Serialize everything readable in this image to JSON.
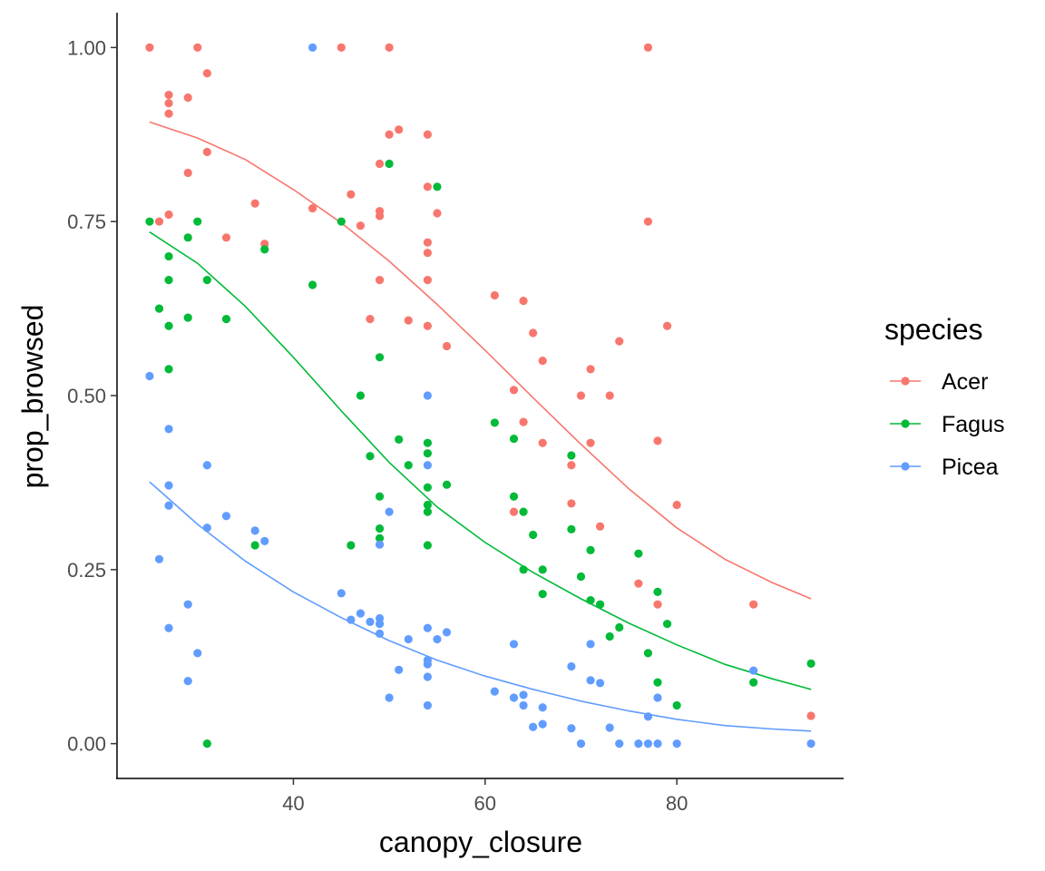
{
  "chart_data": {
    "type": "scatter",
    "title": "",
    "xlabel": "canopy_closure",
    "ylabel": "prop_browsed",
    "xlim": [
      21.6,
      97.4
    ],
    "ylim": [
      -0.05,
      1.05
    ],
    "xticks": [
      40,
      60,
      80
    ],
    "yticks": [
      0.0,
      0.25,
      0.5,
      0.75,
      1.0
    ],
    "xtick_labels": [
      "40",
      "60",
      "80"
    ],
    "ytick_labels": [
      "0.00",
      "0.25",
      "0.50",
      "0.75",
      "1.00"
    ],
    "legend": {
      "title": "species",
      "position": "right"
    },
    "series": [
      {
        "name": "Acer",
        "color": "#F8766D",
        "points": [
          [
            25,
            1.0
          ],
          [
            26,
            0.75
          ],
          [
            27,
            0.932
          ],
          [
            27,
            0.92
          ],
          [
            27,
            0.905
          ],
          [
            27,
            0.76
          ],
          [
            29,
            0.928
          ],
          [
            29,
            0.82
          ],
          [
            30,
            1.0
          ],
          [
            31,
            0.963
          ],
          [
            31,
            0.85
          ],
          [
            33,
            0.727
          ],
          [
            36,
            0.776
          ],
          [
            37,
            0.718
          ],
          [
            42,
            0.769
          ],
          [
            45,
            1.0
          ],
          [
            46,
            0.789
          ],
          [
            47,
            0.744
          ],
          [
            48,
            0.61
          ],
          [
            49,
            0.833
          ],
          [
            49,
            0.765
          ],
          [
            49,
            0.758
          ],
          [
            49,
            0.666
          ],
          [
            50,
            1.0
          ],
          [
            50,
            0.875
          ],
          [
            51,
            0.882
          ],
          [
            52,
            0.608
          ],
          [
            54,
            0.875
          ],
          [
            54,
            0.8
          ],
          [
            54,
            0.72
          ],
          [
            54,
            0.705
          ],
          [
            54,
            0.666
          ],
          [
            54,
            0.6
          ],
          [
            55,
            0.762
          ],
          [
            56,
            0.571
          ],
          [
            61,
            0.644
          ],
          [
            63,
            0.508
          ],
          [
            63,
            0.333
          ],
          [
            64,
            0.636
          ],
          [
            64,
            0.462
          ],
          [
            65,
            0.59
          ],
          [
            66,
            0.55
          ],
          [
            66,
            0.432
          ],
          [
            69,
            0.4
          ],
          [
            69,
            0.345
          ],
          [
            70,
            0.5
          ],
          [
            71,
            0.538
          ],
          [
            71,
            0.432
          ],
          [
            72,
            0.312
          ],
          [
            73,
            0.5
          ],
          [
            74,
            0.578
          ],
          [
            76,
            0.23
          ],
          [
            77,
            1.0
          ],
          [
            77,
            0.75
          ],
          [
            78,
            0.435
          ],
          [
            78,
            0.2
          ],
          [
            79,
            0.6
          ],
          [
            80,
            0.343
          ],
          [
            88,
            0.2
          ],
          [
            94,
            0.04
          ]
        ],
        "fit": [
          [
            25,
            0.893
          ],
          [
            30,
            0.87
          ],
          [
            35,
            0.839
          ],
          [
            40,
            0.796
          ],
          [
            45,
            0.748
          ],
          [
            50,
            0.693
          ],
          [
            55,
            0.631
          ],
          [
            60,
            0.565
          ],
          [
            65,
            0.497
          ],
          [
            70,
            0.43
          ],
          [
            75,
            0.366
          ],
          [
            80,
            0.31
          ],
          [
            85,
            0.265
          ],
          [
            90,
            0.231
          ],
          [
            94,
            0.208
          ]
        ]
      },
      {
        "name": "Fagus",
        "color": "#00BA38",
        "points": [
          [
            25,
            0.75
          ],
          [
            26,
            0.625
          ],
          [
            27,
            0.7
          ],
          [
            27,
            0.666
          ],
          [
            27,
            0.6
          ],
          [
            27,
            0.538
          ],
          [
            29,
            0.727
          ],
          [
            29,
            0.612
          ],
          [
            30,
            0.75
          ],
          [
            31,
            0.666
          ],
          [
            31,
            0.0
          ],
          [
            33,
            0.61
          ],
          [
            36,
            0.285
          ],
          [
            37,
            0.71
          ],
          [
            42,
            0.659
          ],
          [
            45,
            0.75
          ],
          [
            46,
            0.285
          ],
          [
            47,
            0.5
          ],
          [
            48,
            0.413
          ],
          [
            49,
            0.555
          ],
          [
            49,
            0.355
          ],
          [
            49,
            0.309
          ],
          [
            49,
            0.295
          ],
          [
            50,
            0.833
          ],
          [
            51,
            0.437
          ],
          [
            52,
            0.4
          ],
          [
            54,
            0.432
          ],
          [
            54,
            0.417
          ],
          [
            54,
            0.368
          ],
          [
            54,
            0.343
          ],
          [
            54,
            0.333
          ],
          [
            54,
            0.285
          ],
          [
            55,
            0.8
          ],
          [
            56,
            0.372
          ],
          [
            61,
            0.461
          ],
          [
            63,
            0.438
          ],
          [
            63,
            0.355
          ],
          [
            64,
            0.333
          ],
          [
            64,
            0.25
          ],
          [
            65,
            0.3
          ],
          [
            66,
            0.25
          ],
          [
            66,
            0.215
          ],
          [
            69,
            0.414
          ],
          [
            69,
            0.308
          ],
          [
            70,
            0.24
          ],
          [
            71,
            0.278
          ],
          [
            71,
            0.206
          ],
          [
            72,
            0.2
          ],
          [
            73,
            0.154
          ],
          [
            74,
            0.167
          ],
          [
            76,
            0.273
          ],
          [
            77,
            0.13
          ],
          [
            78,
            0.218
          ],
          [
            78,
            0.088
          ],
          [
            79,
            0.172
          ],
          [
            80,
            0.055
          ],
          [
            88,
            0.088
          ],
          [
            94,
            0.115
          ]
        ],
        "fit": [
          [
            25,
            0.735
          ],
          [
            30,
            0.69
          ],
          [
            35,
            0.628
          ],
          [
            40,
            0.555
          ],
          [
            45,
            0.478
          ],
          [
            50,
            0.404
          ],
          [
            55,
            0.34
          ],
          [
            60,
            0.289
          ],
          [
            65,
            0.246
          ],
          [
            70,
            0.208
          ],
          [
            75,
            0.173
          ],
          [
            80,
            0.142
          ],
          [
            85,
            0.114
          ],
          [
            90,
            0.093
          ],
          [
            94,
            0.078
          ]
        ]
      },
      {
        "name": "Picea",
        "color": "#619CFF",
        "points": [
          [
            25,
            0.528
          ],
          [
            26,
            0.265
          ],
          [
            27,
            0.452
          ],
          [
            27,
            0.371
          ],
          [
            27,
            0.342
          ],
          [
            27,
            0.166
          ],
          [
            29,
            0.2
          ],
          [
            29,
            0.09
          ],
          [
            30,
            0.13
          ],
          [
            31,
            0.4
          ],
          [
            31,
            0.31
          ],
          [
            33,
            0.327
          ],
          [
            36,
            0.306
          ],
          [
            37,
            0.291
          ],
          [
            42,
            1.0
          ],
          [
            45,
            0.216
          ],
          [
            46,
            0.178
          ],
          [
            47,
            0.187
          ],
          [
            48,
            0.175
          ],
          [
            49,
            0.18
          ],
          [
            49,
            0.172
          ],
          [
            49,
            0.158
          ],
          [
            49,
            0.286
          ],
          [
            50,
            0.333
          ],
          [
            50,
            0.066
          ],
          [
            51,
            0.106
          ],
          [
            52,
            0.15
          ],
          [
            54,
            0.5
          ],
          [
            54,
            0.4
          ],
          [
            54,
            0.166
          ],
          [
            54,
            0.12
          ],
          [
            54,
            0.114
          ],
          [
            54,
            0.096
          ],
          [
            54,
            0.055
          ],
          [
            55,
            0.15
          ],
          [
            56,
            0.16
          ],
          [
            61,
            0.075
          ],
          [
            63,
            0.143
          ],
          [
            63,
            0.066
          ],
          [
            64,
            0.07
          ],
          [
            64,
            0.055
          ],
          [
            65,
            0.024
          ],
          [
            66,
            0.052
          ],
          [
            66,
            0.028
          ],
          [
            69,
            0.111
          ],
          [
            69,
            0.022
          ],
          [
            70,
            0.0
          ],
          [
            71,
            0.143
          ],
          [
            71,
            0.091
          ],
          [
            72,
            0.087
          ],
          [
            73,
            0.023
          ],
          [
            74,
            0.0
          ],
          [
            76,
            0.0
          ],
          [
            77,
            0.039
          ],
          [
            77,
            0.0
          ],
          [
            78,
            0.066
          ],
          [
            78,
            0.0
          ],
          [
            80,
            0.0
          ],
          [
            88,
            0.105
          ],
          [
            94,
            0.0
          ]
        ],
        "fit": [
          [
            25,
            0.376
          ],
          [
            30,
            0.315
          ],
          [
            35,
            0.262
          ],
          [
            40,
            0.218
          ],
          [
            45,
            0.181
          ],
          [
            50,
            0.148
          ],
          [
            55,
            0.12
          ],
          [
            60,
            0.097
          ],
          [
            65,
            0.078
          ],
          [
            70,
            0.061
          ],
          [
            75,
            0.047
          ],
          [
            80,
            0.035
          ],
          [
            85,
            0.026
          ],
          [
            90,
            0.021
          ],
          [
            94,
            0.018
          ]
        ]
      }
    ]
  }
}
